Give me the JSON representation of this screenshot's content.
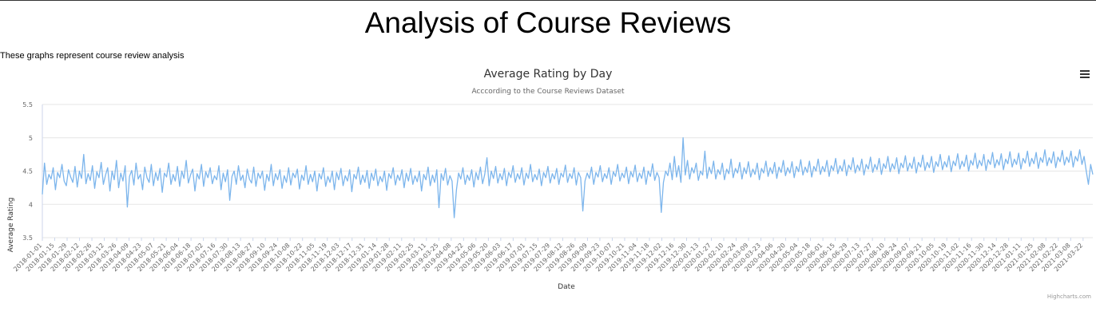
{
  "page": {
    "heading": "Analysis of Course Reviews",
    "intro": "These graphs represent course review analysis"
  },
  "chart": {
    "title": "Average Rating by Day",
    "subtitle": "Acccording to the Course Reviews Dataset",
    "credits": "Highcharts.com",
    "line_color": "#7cb5ec",
    "menu_icon": "hamburger-menu-icon"
  },
  "chart_data": {
    "type": "line",
    "title": "Average Rating by Day",
    "subtitle": "Acccording to the Course Reviews Dataset",
    "xlabel": "Date",
    "ylabel": "Average Rating",
    "ylim": [
      3.5,
      5.5
    ],
    "yticks": [
      3.5,
      4,
      4.5,
      5,
      5.5
    ],
    "grid": true,
    "legend": "none",
    "x_start": "2018-01-01",
    "x_end": "2021-04-02",
    "xticks": [
      "2018-01-01",
      "2018-01-15",
      "2018-01-29",
      "2018-02-12",
      "2018-02-26",
      "2018-03-12",
      "2018-03-26",
      "2018-04-09",
      "2018-04-23",
      "2018-05-07",
      "2018-05-21",
      "2018-06-04",
      "2018-06-18",
      "2018-07-02",
      "2018-07-16",
      "2018-07-30",
      "2018-08-13",
      "2018-08-27",
      "2018-09-10",
      "2018-09-24",
      "2018-10-08",
      "2018-10-22",
      "2018-11-05",
      "2018-11-19",
      "2018-12-03",
      "2018-12-17",
      "2018-12-31",
      "2019-01-14",
      "2019-01-28",
      "2019-02-11",
      "2019-02-25",
      "2019-03-11",
      "2019-03-25",
      "2019-04-08",
      "2019-04-22",
      "2019-05-06",
      "2019-05-20",
      "2019-06-03",
      "2019-06-17",
      "2019-07-01",
      "2019-07-15",
      "2019-07-29",
      "2019-08-12",
      "2019-08-26",
      "2019-09-09",
      "2019-09-23",
      "2019-10-07",
      "2019-10-21",
      "2019-11-04",
      "2019-11-18",
      "2019-12-02",
      "2019-12-16",
      "2019-12-30",
      "2020-01-13",
      "2020-01-27",
      "2020-02-10",
      "2020-02-24",
      "2020-03-09",
      "2020-03-23",
      "2020-04-06",
      "2020-04-20",
      "2020-05-04",
      "2020-05-18",
      "2020-06-01",
      "2020-06-15",
      "2020-06-29",
      "2020-07-13",
      "2020-07-27",
      "2020-08-10",
      "2020-08-24",
      "2020-09-07",
      "2020-09-21",
      "2020-10-05",
      "2020-10-19",
      "2020-11-02",
      "2020-11-16",
      "2020-11-30",
      "2020-12-14",
      "2020-12-28",
      "2021-01-11",
      "2021-01-25",
      "2021-02-08",
      "2021-02-22",
      "2021-03-08",
      "2021-03-22"
    ],
    "series": [
      {
        "values": [
          4.15,
          4.62,
          4.3,
          4.45,
          4.38,
          4.55,
          4.22,
          4.48,
          4.4,
          4.6,
          4.35,
          4.28,
          4.52,
          4.41,
          4.33,
          4.57,
          4.26,
          4.5,
          4.39,
          4.75,
          4.31,
          4.46,
          4.36,
          4.58,
          4.24,
          4.49,
          4.4,
          4.63,
          4.3,
          4.44,
          4.55,
          4.2,
          4.5,
          4.37,
          4.66,
          4.25,
          4.47,
          4.35,
          4.58,
          3.96,
          4.42,
          4.51,
          4.29,
          4.62,
          4.38,
          4.45,
          4.22,
          4.56,
          4.4,
          4.33,
          4.6,
          4.28,
          4.48,
          4.36,
          4.54,
          4.18,
          4.47,
          4.41,
          4.62,
          4.3,
          4.45,
          4.35,
          4.57,
          4.27,
          4.5,
          4.39,
          4.66,
          4.32,
          4.44,
          4.53,
          4.2,
          4.46,
          4.38,
          4.6,
          4.27,
          4.49,
          4.4,
          4.55,
          4.31,
          4.43,
          4.37,
          4.58,
          4.22,
          4.47,
          4.34,
          4.52,
          4.06,
          4.42,
          4.5,
          4.3,
          4.58,
          4.36,
          4.44,
          4.25,
          4.53,
          4.38,
          4.32,
          4.56,
          4.27,
          4.47,
          4.39,
          4.5,
          4.21,
          4.45,
          4.35,
          4.6,
          4.28,
          4.46,
          4.37,
          4.52,
          4.24,
          4.43,
          4.33,
          4.55,
          4.29,
          4.47,
          4.4,
          4.53,
          4.23,
          4.44,
          4.36,
          4.58,
          4.3,
          4.45,
          4.34,
          4.5,
          4.2,
          4.46,
          4.38,
          4.55,
          4.27,
          4.42,
          4.33,
          4.5,
          4.22,
          4.48,
          4.37,
          4.54,
          4.28,
          4.43,
          4.35,
          4.52,
          4.19,
          4.45,
          4.38,
          4.56,
          4.3,
          4.44,
          4.33,
          4.51,
          4.24,
          4.47,
          4.36,
          4.53,
          4.28,
          4.42,
          4.34,
          4.5,
          4.21,
          4.46,
          4.39,
          4.55,
          4.29,
          4.44,
          4.36,
          4.52,
          4.25,
          4.47,
          4.35,
          4.54,
          4.3,
          4.43,
          4.34,
          4.5,
          4.2,
          4.45,
          4.37,
          4.56,
          4.28,
          4.44,
          4.33,
          4.52,
          3.95,
          4.46,
          4.36,
          4.54,
          4.29,
          4.43,
          4.35,
          3.8,
          4.22,
          4.47,
          4.38,
          4.55,
          4.3,
          4.44,
          4.36,
          4.52,
          4.26,
          4.48,
          4.37,
          4.56,
          4.31,
          4.45,
          4.7,
          4.28,
          4.5,
          4.39,
          4.57,
          4.32,
          4.46,
          4.37,
          4.54,
          4.28,
          4.48,
          4.4,
          4.58,
          4.33,
          4.46,
          4.38,
          4.55,
          4.29,
          4.47,
          4.39,
          4.6,
          4.34,
          4.45,
          4.37,
          4.53,
          4.28,
          4.48,
          4.4,
          4.57,
          4.32,
          4.46,
          4.38,
          4.54,
          4.3,
          4.47,
          4.41,
          4.59,
          4.33,
          4.46,
          4.39,
          4.55,
          4.29,
          4.48,
          4.4,
          3.9,
          4.35,
          4.47,
          4.39,
          4.56,
          4.3,
          4.48,
          4.41,
          4.58,
          4.34,
          4.46,
          4.39,
          4.55,
          4.3,
          4.49,
          4.42,
          4.6,
          4.35,
          4.47,
          4.4,
          4.56,
          4.31,
          4.49,
          4.41,
          4.59,
          4.34,
          4.47,
          4.39,
          4.56,
          4.3,
          4.5,
          4.42,
          4.61,
          4.36,
          4.48,
          4.4,
          3.88,
          4.33,
          4.5,
          4.43,
          4.62,
          4.37,
          4.72,
          4.41,
          4.58,
          4.33,
          5.0,
          4.44,
          4.66,
          4.38,
          4.55,
          4.47,
          4.62,
          4.36,
          4.5,
          4.44,
          4.8,
          4.39,
          4.56,
          4.46,
          4.65,
          4.38,
          4.52,
          4.45,
          4.62,
          4.37,
          4.53,
          4.46,
          4.68,
          4.4,
          4.54,
          4.47,
          4.63,
          4.38,
          4.55,
          4.46,
          4.64,
          4.41,
          4.53,
          4.45,
          4.62,
          4.37,
          4.54,
          4.47,
          4.65,
          4.42,
          4.55,
          4.46,
          4.63,
          4.39,
          4.56,
          4.48,
          4.66,
          4.43,
          4.55,
          4.47,
          4.64,
          4.4,
          4.57,
          4.49,
          4.67,
          4.44,
          4.56,
          4.48,
          4.65,
          4.41,
          4.57,
          4.5,
          4.68,
          4.45,
          4.57,
          4.49,
          4.66,
          4.42,
          4.58,
          4.51,
          4.69,
          4.46,
          4.58,
          4.5,
          4.67,
          4.43,
          4.59,
          4.52,
          4.7,
          4.47,
          4.59,
          4.51,
          4.68,
          4.44,
          4.6,
          4.53,
          4.71,
          4.48,
          4.6,
          4.52,
          4.69,
          4.45,
          4.61,
          4.54,
          4.72,
          4.49,
          4.61,
          4.53,
          4.7,
          4.46,
          4.62,
          4.55,
          4.73,
          4.5,
          4.62,
          4.54,
          4.71,
          4.47,
          4.63,
          4.56,
          4.74,
          4.51,
          4.63,
          4.55,
          4.72,
          4.48,
          4.64,
          4.57,
          4.75,
          4.52,
          4.64,
          4.56,
          4.73,
          4.49,
          4.65,
          4.58,
          4.76,
          4.53,
          4.65,
          4.57,
          4.74,
          4.5,
          4.66,
          4.59,
          4.77,
          4.54,
          4.66,
          4.58,
          4.75,
          4.51,
          4.67,
          4.6,
          4.78,
          4.55,
          4.67,
          4.59,
          4.76,
          4.52,
          4.68,
          4.61,
          4.79,
          4.56,
          4.68,
          4.6,
          4.77,
          4.53,
          4.69,
          4.62,
          4.8,
          4.57,
          4.69,
          4.61,
          4.78,
          4.54,
          4.7,
          4.63,
          4.82,
          4.58,
          4.7,
          4.62,
          4.79,
          4.55,
          4.71,
          4.64,
          4.81,
          4.59,
          4.71,
          4.63,
          4.8,
          4.56,
          4.72,
          4.65,
          4.82,
          4.6,
          4.72,
          4.5,
          4.3,
          4.6,
          4.45
        ]
      }
    ]
  }
}
